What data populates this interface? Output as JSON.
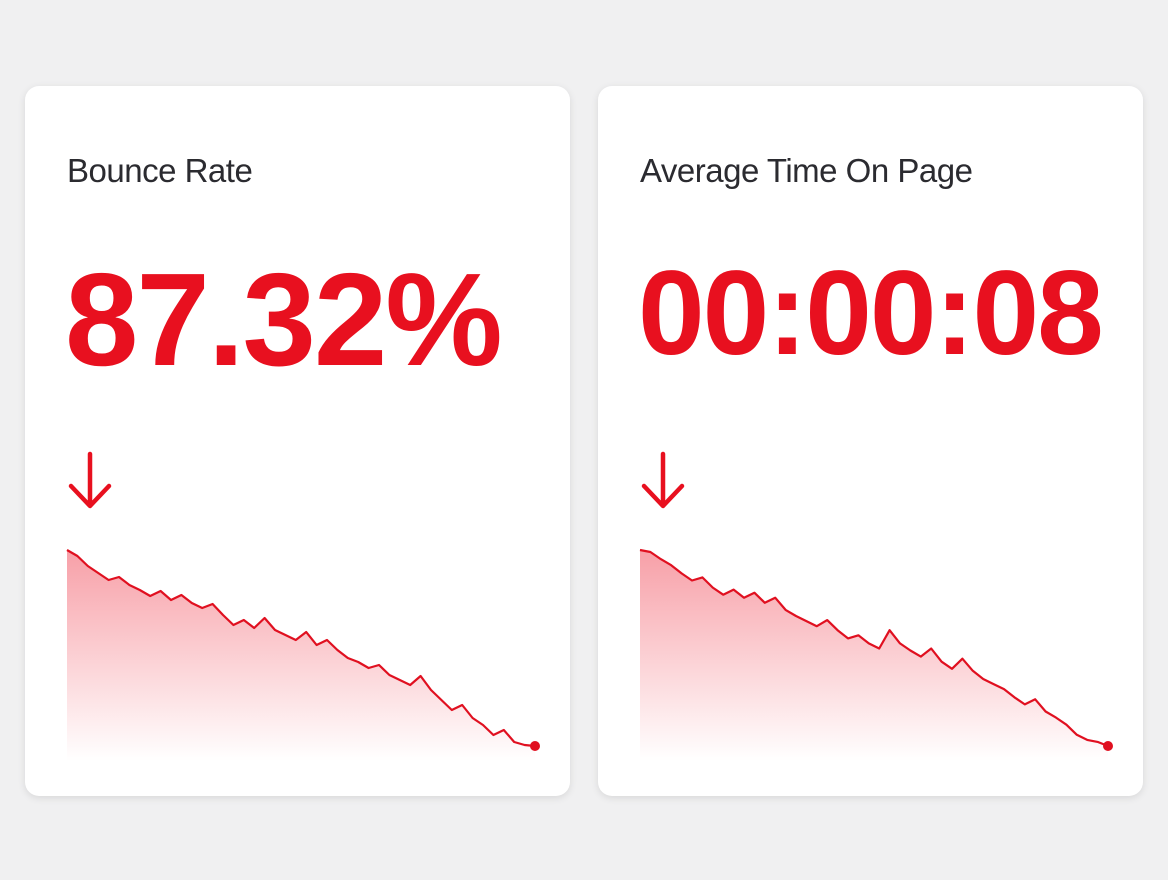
{
  "cards": [
    {
      "title": "Bounce Rate",
      "value": "87.32%",
      "trend": [
        210,
        204,
        194,
        187,
        180,
        183,
        175,
        170,
        164,
        169,
        160,
        165,
        157,
        152,
        156,
        145,
        135,
        140,
        132,
        142,
        130,
        125,
        120,
        128,
        115,
        120,
        110,
        102,
        98,
        92,
        95,
        85,
        80,
        75,
        84,
        70,
        60,
        50,
        55,
        42,
        35,
        25,
        30,
        18,
        15,
        14
      ]
    },
    {
      "title": "Average Time On Page",
      "value": "00:00:08",
      "trend": [
        207,
        205,
        198,
        192,
        184,
        177,
        180,
        170,
        163,
        168,
        160,
        165,
        155,
        160,
        148,
        142,
        137,
        132,
        138,
        128,
        120,
        123,
        115,
        110,
        128,
        115,
        108,
        102,
        110,
        97,
        90,
        100,
        88,
        80,
        75,
        70,
        62,
        55,
        60,
        48,
        42,
        35,
        25,
        20,
        18,
        14
      ]
    }
  ]
}
